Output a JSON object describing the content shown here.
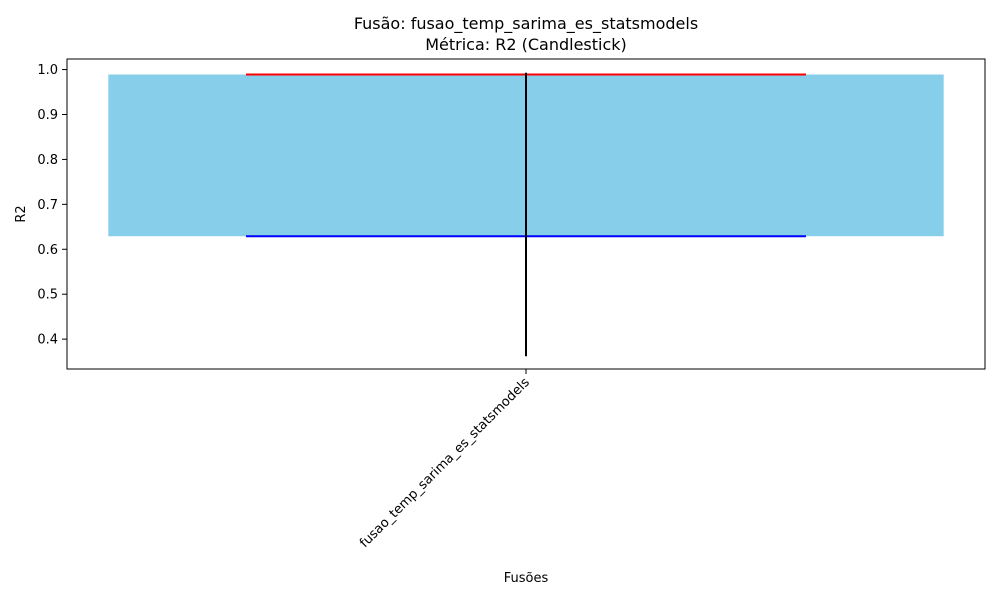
{
  "chart_data": {
    "type": "candlestick",
    "title_line1": "Fusão: fusao_temp_sarima_es_statsmodels",
    "title_line2": "Métrica: R2 (Candlestick)",
    "xlabel": "Fusões",
    "ylabel": "R2",
    "categories": [
      "fusao_temp_sarima_es_statsmodels"
    ],
    "candles": [
      {
        "category": "fusao_temp_sarima_es_statsmodels",
        "box_low": 0.629,
        "box_high": 0.989,
        "low": 0.362,
        "high": 0.993
      }
    ],
    "y_ticks": [
      0.4,
      0.5,
      0.6,
      0.7,
      0.8,
      0.9,
      1.0
    ],
    "y_tick_labels": [
      "0.4",
      "0.5",
      "0.6",
      "0.7",
      "0.8",
      "0.9",
      "1.0"
    ],
    "ylim": [
      0.3335,
      1.0235
    ],
    "grid": false,
    "colors": {
      "box": "#87ceeb",
      "high_line": "#ff0000",
      "low_line": "#0000ff",
      "whisker": "#000000",
      "axes": "#000000"
    }
  }
}
